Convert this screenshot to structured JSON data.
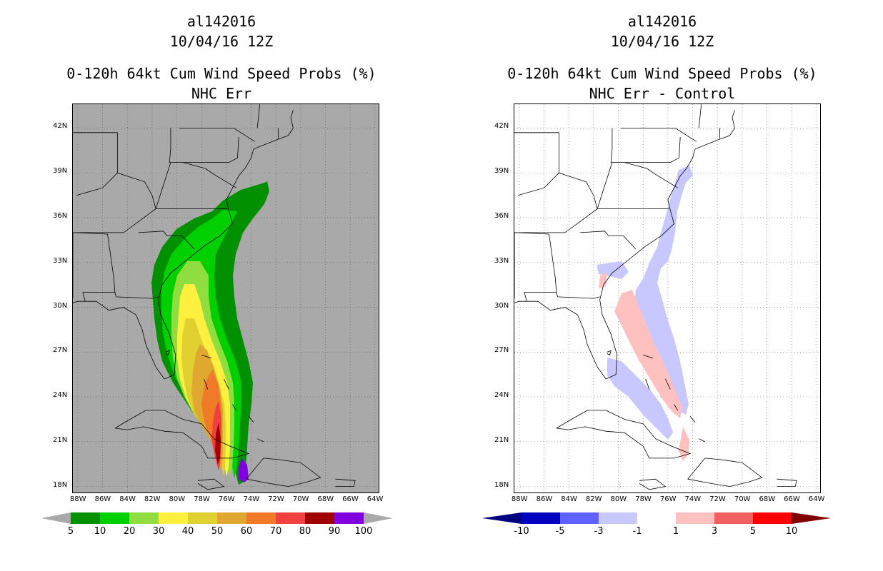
{
  "left_panel": {
    "storm_id": "al142016",
    "datetime": "10/04/16 12Z",
    "title": "0-120h 64kt Cum Wind Speed Probs (%)",
    "subtitle": "NHC Err",
    "background_color": "#a9a9a9",
    "colorbar": {
      "colors": [
        "#009000",
        "#00d000",
        "#90dd40",
        "#fff040",
        "#e0d030",
        "#e0a830",
        "#f07a28",
        "#f04040",
        "#a00000",
        "#8000e0"
      ],
      "labels": [
        "5",
        "10",
        "20",
        "30",
        "40",
        "50",
        "60",
        "70",
        "80",
        "90",
        "100"
      ]
    }
  },
  "right_panel": {
    "storm_id": "al142016",
    "datetime": "10/04/16 12Z",
    "title": "0-120h 64kt Cum Wind Speed Probs (%)",
    "subtitle": "NHC Err - Control",
    "background_color": "#ffffff",
    "colorbar": {
      "colors": [
        "#0000c0",
        "#6060ff",
        "#c8c8ff",
        "#ffffff",
        "#ffc0c0",
        "#f06060",
        "#ff0000"
      ],
      "end_colors": [
        "#000080",
        "#800000"
      ],
      "labels": [
        "-10",
        "-5",
        "-3",
        "-1",
        "1",
        "3",
        "5",
        "10"
      ]
    }
  },
  "axes": {
    "lat_labels": [
      "42N",
      "39N",
      "36N",
      "33N",
      "30N",
      "27N",
      "24N",
      "21N",
      "18N"
    ],
    "lon_labels": [
      "88W",
      "86W",
      "84W",
      "82W",
      "80W",
      "78W",
      "76W",
      "74W",
      "72W",
      "70W",
      "68W",
      "66W",
      "64W"
    ]
  }
}
